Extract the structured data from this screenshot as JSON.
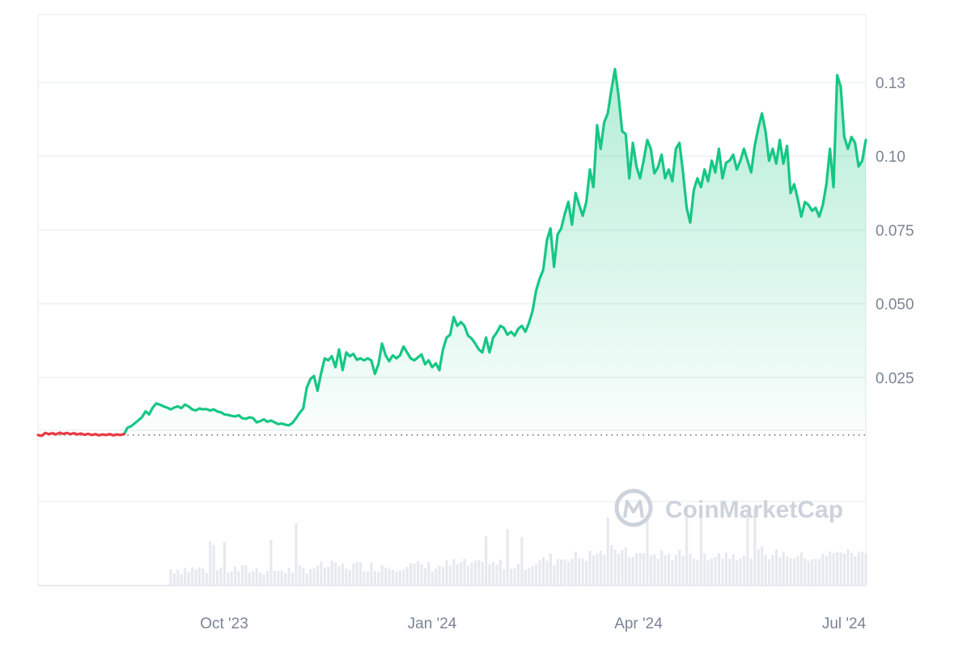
{
  "chart_data": {
    "type": "area",
    "title": "",
    "xlabel": "",
    "ylabel": "",
    "x_ticks": [
      "Oct '23",
      "Jan '24",
      "Apr '24",
      "Jul '24"
    ],
    "y_ticks": [
      "0.025",
      "0.050",
      "0.075",
      "0.10",
      "0.13"
    ],
    "y_tick_values": [
      0.025,
      0.05,
      0.075,
      0.1,
      0.125
    ],
    "ylim": [
      -0.0455,
      0.148
    ],
    "baseline_value": 0.0055,
    "grid": true,
    "legend": "none",
    "colors": {
      "up_line": "#16c784",
      "down_line": "#ea3943",
      "area_top": "#16c784",
      "volume": "#e6e9ee",
      "grid": "#eef0f3",
      "axis_text": "#7b8495"
    },
    "series": [
      {
        "values": [
          0.0055,
          0.0052,
          0.0062,
          0.0058,
          0.0061,
          0.0057,
          0.0063,
          0.0059,
          0.0062,
          0.0058,
          0.0061,
          0.0057,
          0.006,
          0.0056,
          0.0059,
          0.0055,
          0.0058,
          0.0054,
          0.0057,
          0.0055,
          0.0058,
          0.0054,
          0.0057,
          0.0055,
          0.0058,
          0.008,
          0.0085,
          0.0095,
          0.0105,
          0.0115,
          0.0135,
          0.0125,
          0.0148,
          0.0162,
          0.0158,
          0.0152,
          0.0148,
          0.0142,
          0.0148,
          0.0152,
          0.0146,
          0.0158,
          0.0152,
          0.0142,
          0.0138,
          0.0145,
          0.0142,
          0.0143,
          0.0138,
          0.0142,
          0.0135,
          0.0132,
          0.0125,
          0.0123,
          0.012,
          0.0118,
          0.0122,
          0.0112,
          0.011,
          0.0115,
          0.0112,
          0.0098,
          0.0102,
          0.0108,
          0.01,
          0.0104,
          0.0098,
          0.0092,
          0.0094,
          0.009,
          0.0088,
          0.0096,
          0.0112,
          0.013,
          0.0145,
          0.0215,
          0.0245,
          0.0255,
          0.0205,
          0.0265,
          0.0315,
          0.0308,
          0.0322,
          0.0285,
          0.0345,
          0.0275,
          0.0335,
          0.0322,
          0.033,
          0.031,
          0.0315,
          0.0308,
          0.0315,
          0.0308,
          0.0262,
          0.0295,
          0.0365,
          0.0325,
          0.0305,
          0.0325,
          0.0315,
          0.0325,
          0.0355,
          0.0335,
          0.0315,
          0.0308,
          0.0318,
          0.0328,
          0.0295,
          0.0308,
          0.0285,
          0.0298,
          0.0275,
          0.0345,
          0.0385,
          0.0395,
          0.0455,
          0.0425,
          0.0438,
          0.0425,
          0.0392,
          0.0382,
          0.0365,
          0.0345,
          0.0335,
          0.0385,
          0.0335,
          0.0385,
          0.0402,
          0.0425,
          0.0418,
          0.0395,
          0.0405,
          0.0392,
          0.0415,
          0.0425,
          0.0405,
          0.0435,
          0.0475,
          0.0545,
          0.0585,
          0.0615,
          0.0715,
          0.0755,
          0.0625,
          0.0735,
          0.0755,
          0.0805,
          0.0845,
          0.0768,
          0.0875,
          0.0835,
          0.0798,
          0.0845,
          0.0955,
          0.0895,
          0.1105,
          0.1025,
          0.1115,
          0.1145,
          0.1225,
          0.1295,
          0.1205,
          0.1085,
          0.1075,
          0.0925,
          0.1045,
          0.0965,
          0.0925,
          0.0985,
          0.1055,
          0.1025,
          0.0942,
          0.0962,
          0.1005,
          0.0925,
          0.0955,
          0.0915,
          0.1025,
          0.1045,
          0.0945,
          0.0825,
          0.0775,
          0.0885,
          0.0925,
          0.0895,
          0.0955,
          0.0915,
          0.0985,
          0.0945,
          0.1025,
          0.0925,
          0.0978,
          0.0985,
          0.1005,
          0.0955,
          0.0985,
          0.1025,
          0.0985,
          0.0945,
          0.1035,
          0.1095,
          0.1145,
          0.1085,
          0.0985,
          0.1025,
          0.0975,
          0.1055,
          0.0975,
          0.1035,
          0.0875,
          0.0905,
          0.0855,
          0.0795,
          0.0845,
          0.0835,
          0.0815,
          0.0825,
          0.0795,
          0.0835,
          0.0905,
          0.1025,
          0.0895,
          0.1275,
          0.1235,
          0.1065,
          0.1025,
          0.1065,
          0.1045,
          0.0965,
          0.0985,
          0.1055
        ]
      }
    ]
  },
  "watermark": {
    "text": "CoinMarketCap",
    "icon": "coinmarketcap-logo-icon"
  }
}
